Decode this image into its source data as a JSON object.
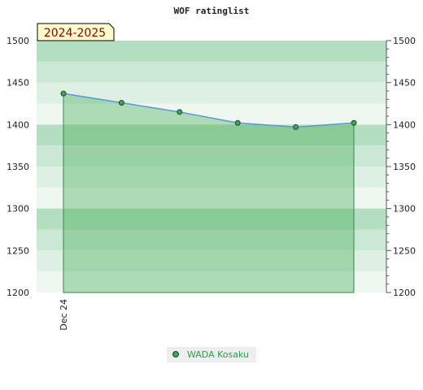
{
  "chart_data": {
    "type": "area",
    "title": "WOF ratinglist",
    "season_badge": "2024-2025",
    "ylim": [
      1200,
      1500
    ],
    "yticks": [
      1200,
      1250,
      1300,
      1350,
      1400,
      1450,
      1500
    ],
    "x_tick_labels": [
      "Dec 24"
    ],
    "series": [
      {
        "name": "WADA Kosaku",
        "values": [
          1437,
          1426,
          1415,
          1402,
          1397,
          1402
        ],
        "color": "#5a9bd5",
        "marker_color": "#3fa35a"
      }
    ],
    "grid": true,
    "legend_position": "bottom-center",
    "colors": {
      "band_dark": "#b3dfc0",
      "band_mid": "#cbe8d4",
      "band_light": "#ddf0e3",
      "band_pale": "#eef8f1",
      "area_fill": "#44aa55",
      "badge_fill": "#ffffcc"
    }
  }
}
